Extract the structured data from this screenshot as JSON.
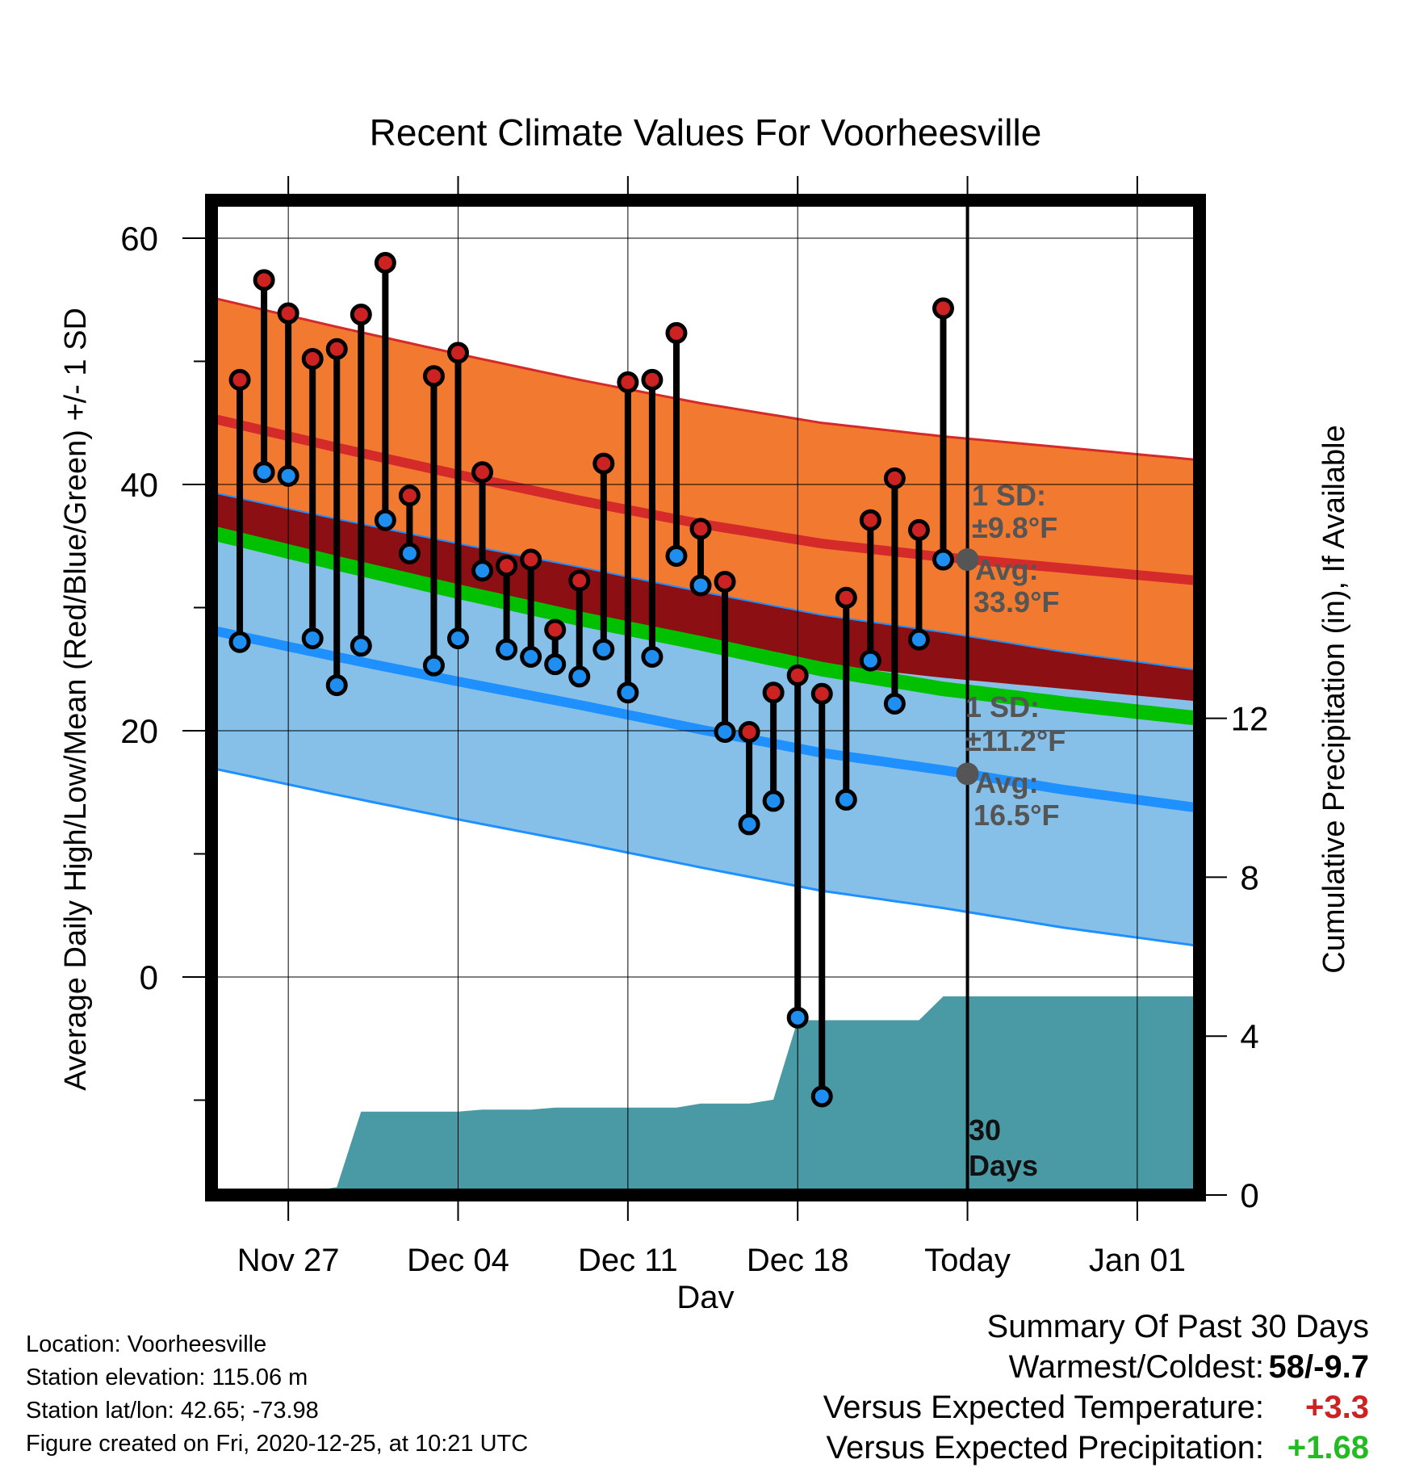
{
  "chart_data": {
    "type": "line",
    "title": "Recent Climate Values For Voorheesville",
    "xlabel": "Day",
    "ylabel_left": "Average Daily High/Low/Mean (Red/Blue/Green) +/- 1 SD",
    "ylabel_right": "Cumulative Precipitation (in), If Available",
    "x_tick_labels": [
      "Nov 27",
      "Dec 04",
      "Dec 11",
      "Dec 18",
      "Today",
      "Jan 01"
    ],
    "x_tick_days": [
      3,
      10,
      17,
      24,
      31,
      38
    ],
    "xlim_days": [
      0,
      41
    ],
    "y_left_ticks": [
      0,
      20,
      40,
      60
    ],
    "y_left_lim": [
      -17,
      63
    ],
    "y_right_ticks": [
      0,
      4,
      8,
      12
    ],
    "y_right_lim": [
      0,
      24.8
    ],
    "days": [
      1,
      2,
      3,
      4,
      5,
      6,
      7,
      8,
      9,
      10,
      11,
      12,
      13,
      14,
      15,
      16,
      17,
      18,
      19,
      20,
      21,
      22,
      23,
      24,
      25,
      26,
      27,
      28,
      29,
      30
    ],
    "daily_high": [
      48.5,
      56.6,
      53.9,
      50.2,
      51.0,
      53.8,
      58.0,
      39.1,
      48.8,
      50.7,
      41.0,
      33.4,
      33.9,
      28.2,
      32.2,
      41.7,
      48.3,
      48.5,
      52.3,
      36.4,
      32.1,
      19.9,
      23.1,
      24.5,
      23.0,
      30.8,
      37.1,
      40.5,
      36.3,
      54.3
    ],
    "daily_low": [
      27.2,
      41.0,
      40.7,
      27.5,
      23.7,
      26.9,
      37.1,
      34.4,
      25.3,
      27.5,
      33.0,
      26.6,
      26.0,
      25.4,
      24.4,
      26.6,
      23.1,
      26.0,
      34.2,
      31.8,
      19.9,
      12.4,
      14.3,
      -3.3,
      -9.7,
      14.4,
      25.7,
      22.2,
      27.4,
      33.9
    ],
    "normal_high": {
      "day": [
        0,
        5,
        10,
        15,
        20,
        25,
        30,
        35,
        41
      ],
      "mean": [
        45.3,
        43.0,
        40.8,
        38.7,
        36.8,
        35.2,
        34.1,
        33.2,
        32.1
      ],
      "sd": 9.8,
      "today_avg": 33.9
    },
    "normal_low": {
      "day": [
        0,
        5,
        10,
        15,
        20,
        25,
        30,
        35,
        41
      ],
      "mean": [
        28.1,
        26.0,
        24.0,
        22.1,
        20.1,
        18.2,
        16.8,
        15.2,
        13.6
      ],
      "sd": 11.2,
      "today_avg": 16.5
    },
    "normal_mean": {
      "day": [
        0,
        5,
        10,
        15,
        20,
        25,
        30,
        35,
        41
      ],
      "mean": [
        36.0,
        33.6,
        31.3,
        29.1,
        27.1,
        25.0,
        23.4,
        22.2,
        20.9
      ]
    },
    "cumulative_precip": {
      "day": [
        0,
        1,
        2,
        3,
        4,
        5,
        6,
        7,
        8,
        9,
        10,
        11,
        12,
        13,
        14,
        15,
        16,
        17,
        18,
        19,
        20,
        21,
        22,
        23,
        24,
        25,
        26,
        27,
        28,
        29,
        30,
        41
      ],
      "value": [
        0,
        0,
        0.05,
        0.1,
        0.1,
        0.2,
        2.1,
        2.1,
        2.1,
        2.1,
        2.1,
        2.15,
        2.15,
        2.15,
        2.2,
        2.2,
        2.2,
        2.2,
        2.2,
        2.2,
        2.3,
        2.3,
        2.3,
        2.4,
        4.4,
        4.4,
        4.4,
        4.4,
        4.4,
        4.4,
        5.0,
        5.0
      ]
    },
    "annotations": {
      "high_sd": "1 SD:",
      "high_sd_value": "±9.8°F",
      "high_avg": "Avg:",
      "high_avg_value": "33.9°F",
      "low_sd": "1 SD:",
      "low_sd_value": "±11.2°F",
      "low_avg": "Avg:",
      "low_avg_value": "16.5°F",
      "window_count": "30",
      "window_unit": "Days"
    },
    "colors": {
      "high_band": "#f27a30",
      "high_line": "#d42a2a",
      "overlap_band": "#8c0f14",
      "mean_line": "#00c000",
      "low_band": "#86c0e8",
      "low_line": "#1e90ff",
      "precip": "#4a9aa5",
      "high_marker": "#cc2222",
      "low_marker": "#1e8ff0",
      "avg_marker": "#555555"
    },
    "grid": true
  },
  "footer": {
    "location": "Location: Voorheesville",
    "elevation": "Station elevation: 115.06 m",
    "latlon": "Station lat/lon: 42.65; -73.98",
    "created": "Figure created on Fri, 2020-12-25, at 10:21 UTC"
  },
  "summary": {
    "heading": "Summary Of Past 30 Days",
    "warmest_label": "Warmest/Coldest:",
    "warmest_value": "58/-9.7",
    "temp_label": "Versus Expected Temperature:",
    "temp_value": "+3.3",
    "temp_color": "#cc2222",
    "precip_label": "Versus Expected Precipitation:",
    "precip_value": "+1.68",
    "precip_color": "#22bb22"
  }
}
